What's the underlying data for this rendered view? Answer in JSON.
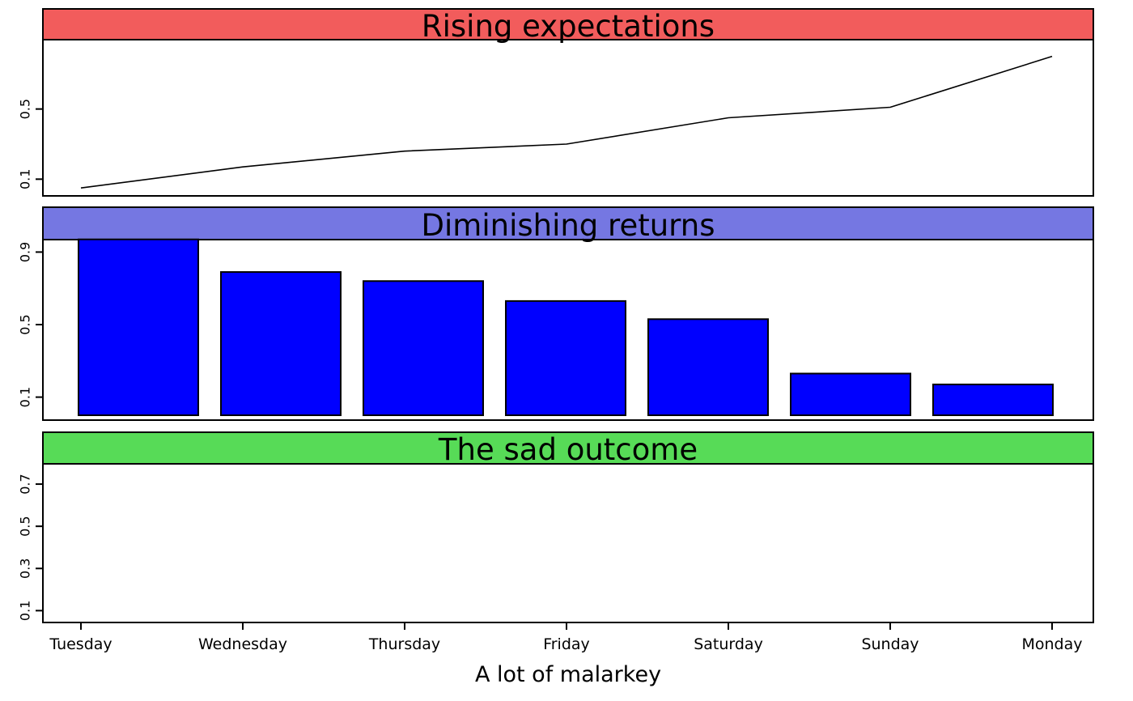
{
  "figure": {
    "background": "#ffffff",
    "axis_color": "#000000",
    "x_categories": [
      "Tuesday",
      "Wednesday",
      "Thursday",
      "Friday",
      "Saturday",
      "Sunday",
      "Monday"
    ],
    "xlabel": "A lot of malarkey"
  },
  "chart_data": [
    {
      "type": "line",
      "title": "Rising expectations",
      "banner_color": "#F25C5C",
      "line_color": "#000000",
      "x": [
        "Tuesday",
        "Wednesday",
        "Thursday",
        "Friday",
        "Saturday",
        "Sunday",
        "Monday"
      ],
      "values": [
        0.05,
        0.17,
        0.26,
        0.3,
        0.45,
        0.51,
        0.8
      ],
      "yticks": [
        0.1,
        0.5
      ],
      "ylim": [
        0,
        0.9
      ],
      "xlabel": "",
      "ylabel": "",
      "grid": false,
      "legend": "none"
    },
    {
      "type": "bar",
      "title": "Diminishing returns",
      "banner_color": "#7577E2",
      "bar_color": "#0000FF",
      "bar_border_color": "#000000",
      "categories": [
        "Tuesday",
        "Wednesday",
        "Thursday",
        "Friday",
        "Saturday",
        "Sunday",
        "Monday"
      ],
      "values": [
        0.97,
        0.79,
        0.74,
        0.63,
        0.53,
        0.23,
        0.17
      ],
      "yticks": [
        0.1,
        0.5,
        0.9
      ],
      "ylim": [
        0,
        1.0
      ],
      "xlabel": "",
      "ylabel": "",
      "grid": false,
      "legend": "none"
    },
    {
      "type": "line",
      "title": "The sad outcome",
      "banner_color": "#57DB57",
      "x": [
        "Tuesday",
        "Wednesday",
        "Thursday",
        "Friday",
        "Saturday",
        "Sunday",
        "Monday"
      ],
      "values": [],
      "yticks": [
        0.1,
        0.3,
        0.5,
        0.7
      ],
      "ylim": [
        0.04,
        0.8
      ],
      "xticklabels": [
        "Tuesday",
        "Wednesday",
        "Thursday",
        "Friday",
        "Saturday",
        "Sunday",
        "Monday"
      ],
      "xlabel": "A lot of malarkey",
      "ylabel": "",
      "grid": false,
      "legend": "none"
    }
  ]
}
